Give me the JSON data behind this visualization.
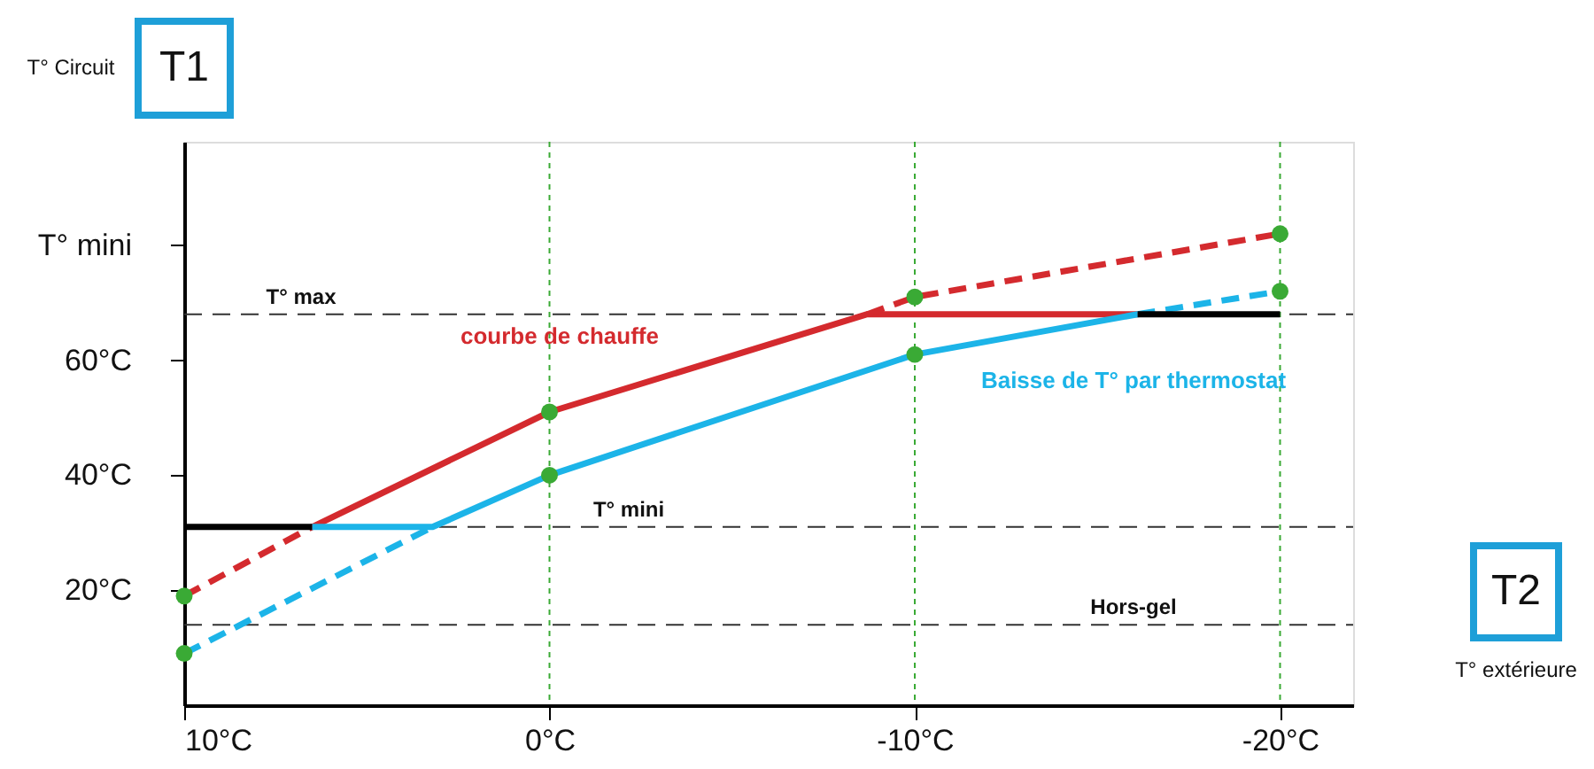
{
  "chart_data": {
    "type": "line",
    "xlabel": "T° extérieure",
    "ylabel": "T° Circuit",
    "annotations": [
      "T1",
      "T2"
    ],
    "xlim": [
      10,
      -22
    ],
    "ylim": [
      0,
      98
    ],
    "xticks": [
      {
        "value": 10,
        "label": "10°C"
      },
      {
        "value": 0,
        "label": "0°C"
      },
      {
        "value": -10,
        "label": "-10°C"
      },
      {
        "value": -20,
        "label": "-20°C"
      }
    ],
    "yticks": [
      {
        "value": 20,
        "label": "20°C"
      },
      {
        "value": 40,
        "label": "40°C"
      },
      {
        "value": 60,
        "label": "60°C"
      },
      {
        "value": 80,
        "label": "T° mini"
      }
    ],
    "grid": false,
    "series": [
      {
        "color": "#d42a2e",
        "line_style": "dashed",
        "x": [
          10,
          6.5
        ],
        "values": [
          19,
          31
        ]
      },
      {
        "name": "courbe de chauffe",
        "color": "#d42a2e",
        "line_style": "solid",
        "x": [
          6.5,
          0,
          -8.7,
          -16.1
        ],
        "values": [
          31,
          51,
          68,
          68
        ]
      },
      {
        "color": "#d42a2e",
        "line_style": "dashed",
        "x": [
          -8.7,
          -10,
          -20
        ],
        "values": [
          68,
          71,
          82
        ]
      },
      {
        "color": "#1cb4e8",
        "line_style": "dashed",
        "x": [
          10,
          3.2
        ],
        "values": [
          9,
          31
        ]
      },
      {
        "name": "Baisse de T° par thermostat",
        "color": "#1cb4e8",
        "line_style": "solid",
        "x": [
          6.5,
          3.2,
          0,
          -10,
          -16.1
        ],
        "values": [
          31,
          31,
          40,
          61,
          68
        ]
      },
      {
        "color": "#1cb4e8",
        "line_style": "dashed",
        "x": [
          -16.1,
          -20
        ],
        "values": [
          68,
          72
        ]
      },
      {
        "color": "#000000",
        "line_style": "solid",
        "x": [
          10,
          6.5
        ],
        "values": [
          31,
          31
        ]
      },
      {
        "color": "#000000",
        "line_style": "solid",
        "x": [
          -16.1,
          -20
        ],
        "values": [
          68,
          68
        ]
      },
      {
        "type": "scatter",
        "marker": "circle",
        "color": "#3aaa35",
        "x": [
          10,
          10,
          0,
          0,
          -10,
          -10,
          -20,
          -20
        ],
        "values": [
          19,
          9,
          51,
          40,
          71,
          61,
          82,
          72
        ]
      }
    ],
    "ref_lines": [
      {
        "axis": "y",
        "value": 68,
        "label": "T° max",
        "color": "#333333",
        "line_style": "dashed"
      },
      {
        "axis": "y",
        "value": 31,
        "label": "T° mini",
        "color": "#333333",
        "line_style": "dashed"
      },
      {
        "axis": "y",
        "value": 14,
        "label": "Hors-gel",
        "color": "#333333",
        "line_style": "dashed"
      },
      {
        "axis": "x",
        "value": 0,
        "color": "#3aaa35",
        "line_style": "dotted"
      },
      {
        "axis": "x",
        "value": -10,
        "color": "#3aaa35",
        "line_style": "dotted"
      },
      {
        "axis": "x",
        "value": -20,
        "color": "#3aaa35",
        "line_style": "dotted"
      }
    ]
  }
}
